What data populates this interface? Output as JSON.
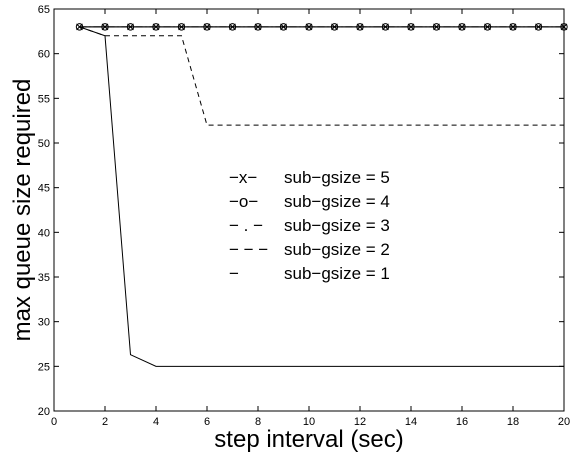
{
  "chart_data": {
    "type": "line",
    "xlabel": "step interval (sec)",
    "ylabel": "max queue size required",
    "xlim": [
      0,
      20
    ],
    "ylim": [
      20,
      65
    ],
    "xticks": [
      "0",
      "2",
      "4",
      "6",
      "8",
      "10",
      "12",
      "14",
      "16",
      "18",
      "20"
    ],
    "yticks": [
      "20",
      "25",
      "30",
      "35",
      "40",
      "45",
      "50",
      "55",
      "60",
      "65"
    ],
    "grid": false,
    "legend_position": "center-right",
    "series": [
      {
        "name": "sub−gsize = 5",
        "legend_symbol": "−x−",
        "line_style": "solid",
        "marker": "x",
        "x": [
          1,
          2,
          3,
          4,
          5,
          6,
          7,
          8,
          9,
          10,
          11,
          12,
          13,
          14,
          15,
          16,
          17,
          18,
          19,
          20
        ],
        "y": [
          63,
          63,
          63,
          63,
          63,
          63,
          63,
          63,
          63,
          63,
          63,
          63,
          63,
          63,
          63,
          63,
          63,
          63,
          63,
          63
        ]
      },
      {
        "name": "sub−gsize = 4",
        "legend_symbol": "−o−",
        "line_style": "solid",
        "marker": "o",
        "x": [
          1,
          2,
          3,
          4,
          5,
          6,
          7,
          8,
          9,
          10,
          11,
          12,
          13,
          14,
          15,
          16,
          17,
          18,
          19,
          20
        ],
        "y": [
          63,
          63,
          63,
          63,
          63,
          63,
          63,
          63,
          63,
          63,
          63,
          63,
          63,
          63,
          63,
          63,
          63,
          63,
          63,
          63
        ]
      },
      {
        "name": "sub−gsize = 3",
        "legend_symbol": "− . −",
        "line_style": "dashdot",
        "marker": "none",
        "x": [
          1,
          2,
          3,
          4,
          5,
          6,
          7,
          8,
          9,
          10,
          11,
          12,
          13,
          14,
          15,
          16,
          17,
          18,
          19,
          20
        ],
        "y": [
          63,
          63,
          63,
          63,
          63,
          63,
          63,
          63,
          63,
          63,
          63,
          63,
          63,
          63,
          63,
          63,
          63,
          63,
          63,
          63
        ]
      },
      {
        "name": "sub−gsize = 2",
        "legend_symbol": "− − −",
        "line_style": "dashed",
        "marker": "none",
        "x": [
          1,
          2,
          3,
          4,
          5,
          6,
          7,
          8,
          9,
          10,
          11,
          12,
          13,
          14,
          15,
          16,
          17,
          18,
          19,
          20
        ],
        "y": [
          63,
          62,
          62,
          62,
          62,
          52,
          52,
          52,
          52,
          52,
          52,
          52,
          52,
          52,
          52,
          52,
          52,
          52,
          52,
          52
        ]
      },
      {
        "name": "sub−gsize = 1",
        "legend_symbol": "−",
        "line_style": "solid",
        "marker": "none",
        "x": [
          1,
          2,
          3,
          4,
          5,
          6,
          7,
          8,
          9,
          10,
          11,
          12,
          13,
          14,
          15,
          16,
          17,
          18,
          19,
          20
        ],
        "y": [
          63,
          62,
          26.3,
          25,
          25,
          25,
          25,
          25,
          25,
          25,
          25,
          25,
          25,
          25,
          25,
          25,
          25,
          25,
          25,
          25
        ]
      }
    ]
  }
}
